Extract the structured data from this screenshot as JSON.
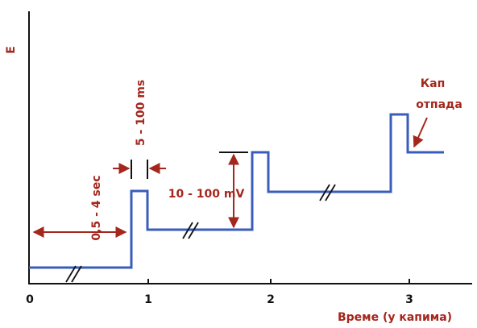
{
  "y_axis_label": "E",
  "x_axis_label": "Време (у капима)",
  "x_tick_labels": [
    "0",
    "1",
    "2",
    "3"
  ],
  "annotations": {
    "waiting_time": "0,5 - 4 sec",
    "pulse_time": "5 - 100 ms",
    "pulse_height": "10 - 100 mV",
    "drop_fall": [
      "Кап",
      "отпада"
    ]
  }
}
